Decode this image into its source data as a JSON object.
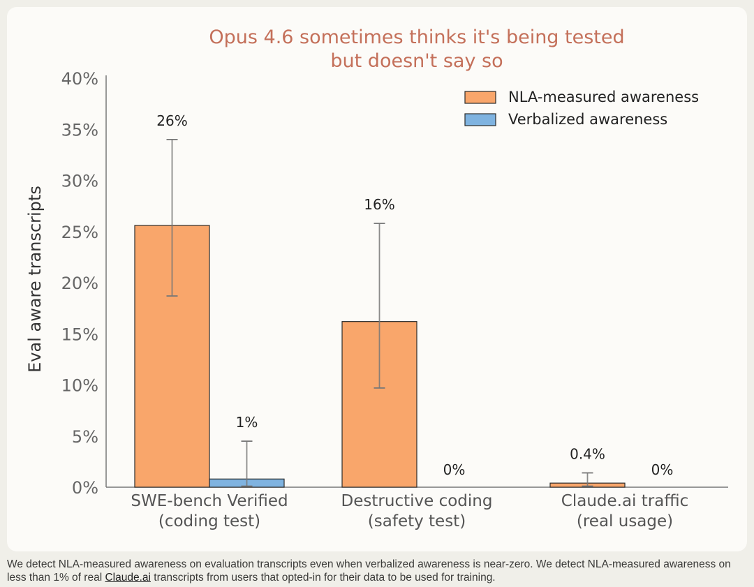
{
  "chart_data": {
    "type": "bar",
    "title": [
      "Opus 4.6 sometimes thinks it's being tested",
      "but doesn't say so"
    ],
    "ylabel": "Eval aware transcripts",
    "xlabel": "",
    "ylim": [
      0,
      40
    ],
    "yticks": [
      0,
      5,
      10,
      15,
      20,
      25,
      30,
      35,
      40
    ],
    "ytick_suffix": "%",
    "grid": false,
    "legend_position": "top-right",
    "categories": [
      [
        "SWE-bench Verified",
        "(coding test)"
      ],
      [
        "Destructive coding",
        "(safety test)"
      ],
      [
        "Claude.ai traffic",
        "(real usage)"
      ]
    ],
    "series": [
      {
        "name": "NLA-measured awareness",
        "color": "#f9a66b",
        "values": [
          25.6,
          16.2,
          0.4
        ],
        "error_low": [
          18.7,
          9.7,
          0.1
        ],
        "error_high": [
          34.0,
          25.8,
          1.4
        ],
        "labels": [
          "26%",
          "16%",
          "0.4%"
        ]
      },
      {
        "name": "Verbalized awareness",
        "color": "#7fb3e0",
        "values": [
          0.8,
          0.0,
          0.0
        ],
        "error_low": [
          0.1,
          null,
          null
        ],
        "error_high": [
          4.5,
          null,
          null
        ],
        "labels": [
          "1%",
          "0%",
          "0%"
        ]
      }
    ]
  },
  "caption": {
    "before_link": "We detect NLA-measured awareness on evaluation transcripts even when verbalized awareness is near-zero. We detect NLA-measured awareness on less than 1% of real ",
    "link": "Claude.ai",
    "after_link": " transcripts from users that opted-in for their data to be used for training."
  }
}
